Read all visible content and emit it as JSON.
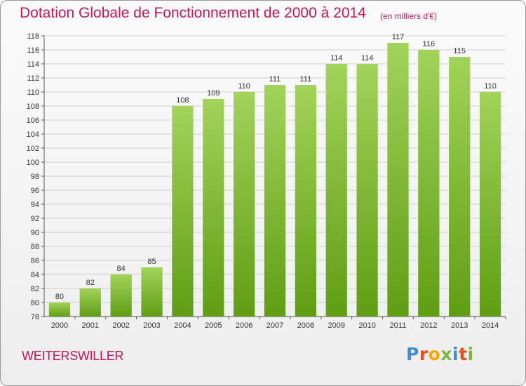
{
  "header": {
    "title": "Dotation Globale de Fonctionnement de 2000 à 2014",
    "subtitle": "(en milliers d'€)"
  },
  "commune": "WEITERSWILLER",
  "logo": {
    "text": "Proxiti",
    "letter_colors": [
      "#3b8fd6",
      "#e94e1b",
      "#f6a800",
      "#7cb342",
      "#3b8fd6",
      "#e94e1b",
      "#7cb342"
    ]
  },
  "colors": {
    "bar_top": "#a2d35a",
    "bar_bottom": "#5f9e13",
    "title": "#c2185b"
  },
  "chart_data": {
    "type": "bar",
    "categories": [
      "2000",
      "2001",
      "2002",
      "2003",
      "2004",
      "2005",
      "2006",
      "2007",
      "2008",
      "2009",
      "2010",
      "2011",
      "2012",
      "2013",
      "2014"
    ],
    "values": [
      80,
      82,
      84,
      85,
      108,
      109,
      110,
      111,
      111,
      114,
      114,
      117,
      116,
      115,
      110
    ],
    "title": "Dotation Globale de Fonctionnement de 2000 à 2014",
    "subtitle": "(en milliers d'€)",
    "xlabel": "",
    "ylabel": "",
    "ylim": [
      78,
      118
    ],
    "ytick_step": 2,
    "grid": true,
    "legend": "none"
  }
}
